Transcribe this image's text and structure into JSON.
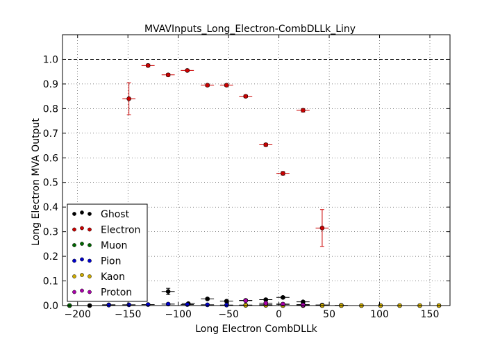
{
  "chart_data": {
    "type": "scatter",
    "title": "MVAVInputs_Long_Electron-CombDLLk_Liny",
    "xlabel": "Long Electron CombDLLk",
    "ylabel": "Long Electron MVA Output",
    "xlim": [
      -215,
      170
    ],
    "ylim": [
      0,
      1.1
    ],
    "xticks": [
      -200,
      -150,
      -100,
      -50,
      0,
      50,
      100,
      150
    ],
    "xtick_labels": [
      "−200",
      "−150",
      "−100",
      "−50",
      "0",
      "50",
      "100",
      "150"
    ],
    "yticks": [
      0.0,
      0.1,
      0.2,
      0.3,
      0.4,
      0.5,
      0.6,
      0.7,
      0.8,
      0.9,
      1.0
    ],
    "ytick_labels": [
      "0.0",
      "0.1",
      "0.2",
      "0.3",
      "0.4",
      "0.5",
      "0.6",
      "0.7",
      "0.8",
      "0.9",
      "1.0"
    ],
    "grid": true,
    "reference_line_y": 1.0,
    "legend_position": "lower-left",
    "series": [
      {
        "name": "Ghost",
        "color": "#000000",
        "points": [
          {
            "x": -110,
            "y": 0.057,
            "xerr": 6.5,
            "yerr": 0.013
          },
          {
            "x": -90,
            "y": 0.008,
            "xerr": 6.5,
            "yerr": 0.002
          },
          {
            "x": -71,
            "y": 0.027,
            "xerr": 6.5,
            "yerr": 0.004
          },
          {
            "x": -52,
            "y": 0.018,
            "xerr": 6.5,
            "yerr": 0.003
          },
          {
            "x": -33,
            "y": 0.021,
            "xerr": 6.5,
            "yerr": 0.004
          },
          {
            "x": -13,
            "y": 0.024,
            "xerr": 6.5,
            "yerr": 0.004
          },
          {
            "x": 4,
            "y": 0.033,
            "xerr": 6.5,
            "yerr": 0.005
          },
          {
            "x": 24,
            "y": 0.015,
            "xerr": 6.5,
            "yerr": 0.003
          },
          {
            "x": 43,
            "y": 0.002,
            "xerr": 6.5,
            "yerr": 0.001
          },
          {
            "x": 62,
            "y": 0.001,
            "xerr": 6.5,
            "yerr": 0.001
          },
          {
            "x": -188,
            "y": 0.0,
            "xerr": 6.5,
            "yerr": 0.0
          },
          {
            "x": -169,
            "y": 0.003,
            "xerr": 6.5,
            "yerr": 0.001
          }
        ]
      },
      {
        "name": "Electron",
        "color": "#cc0000",
        "points": [
          {
            "x": -149,
            "y": 0.84,
            "xerr": 6.5,
            "yerr": 0.065
          },
          {
            "x": -130,
            "y": 0.975,
            "xerr": 6.5,
            "yerr": 0.006
          },
          {
            "x": -110,
            "y": 0.937,
            "xerr": 6.5,
            "yerr": 0.006
          },
          {
            "x": -91,
            "y": 0.955,
            "xerr": 6.5,
            "yerr": 0.005
          },
          {
            "x": -71,
            "y": 0.895,
            "xerr": 6.5,
            "yerr": 0.005
          },
          {
            "x": -52,
            "y": 0.895,
            "xerr": 6.5,
            "yerr": 0.005
          },
          {
            "x": -33,
            "y": 0.85,
            "xerr": 6.5,
            "yerr": 0.005
          },
          {
            "x": -13,
            "y": 0.653,
            "xerr": 6.5,
            "yerr": 0.006
          },
          {
            "x": 4,
            "y": 0.537,
            "xerr": 6.5,
            "yerr": 0.007
          },
          {
            "x": 24,
            "y": 0.793,
            "xerr": 6.5,
            "yerr": 0.007
          },
          {
            "x": 43,
            "y": 0.315,
            "xerr": 6.5,
            "yerr": 0.075
          }
        ]
      },
      {
        "name": "Muon",
        "color": "#006600",
        "points": [
          {
            "x": -208,
            "y": 0.0,
            "xerr": 6.5,
            "yerr": 0.0
          }
        ]
      },
      {
        "name": "Pion",
        "color": "#0000cc",
        "points": [
          {
            "x": -169,
            "y": 0.002,
            "xerr": 6.5,
            "yerr": 0.001
          },
          {
            "x": -149,
            "y": 0.003,
            "xerr": 6.5,
            "yerr": 0.001
          },
          {
            "x": -130,
            "y": 0.004,
            "xerr": 6.5,
            "yerr": 0.001
          },
          {
            "x": -110,
            "y": 0.006,
            "xerr": 6.5,
            "yerr": 0.001
          },
          {
            "x": -91,
            "y": 0.004,
            "xerr": 6.5,
            "yerr": 0.001
          },
          {
            "x": -71,
            "y": 0.003,
            "xerr": 6.5,
            "yerr": 0.001
          },
          {
            "x": -52,
            "y": 0.002,
            "xerr": 6.5,
            "yerr": 0.001
          },
          {
            "x": -33,
            "y": 0.002,
            "xerr": 6.5,
            "yerr": 0.001
          },
          {
            "x": -13,
            "y": 0.003,
            "xerr": 6.5,
            "yerr": 0.001
          },
          {
            "x": 4,
            "y": 0.005,
            "xerr": 6.5,
            "yerr": 0.001
          },
          {
            "x": 24,
            "y": 0.004,
            "xerr": 6.5,
            "yerr": 0.001
          },
          {
            "x": 43,
            "y": 0.002,
            "xerr": 6.5,
            "yerr": 0.001
          }
        ]
      },
      {
        "name": "Kaon",
        "color": "#ccaa00",
        "points": [
          {
            "x": -33,
            "y": 0.001,
            "xerr": 6.5,
            "yerr": 0.001
          },
          {
            "x": -13,
            "y": 0.001,
            "xerr": 6.5,
            "yerr": 0.001
          },
          {
            "x": 4,
            "y": 0.0,
            "xerr": 6.5,
            "yerr": 0.0
          },
          {
            "x": 24,
            "y": 0.0,
            "xerr": 6.5,
            "yerr": 0.0
          },
          {
            "x": 43,
            "y": 0.0,
            "xerr": 6.5,
            "yerr": 0.0
          },
          {
            "x": 62,
            "y": 0.0,
            "xerr": 6.5,
            "yerr": 0.0
          },
          {
            "x": 82,
            "y": 0.0,
            "xerr": 6.5,
            "yerr": 0.0
          },
          {
            "x": 101,
            "y": 0.0,
            "xerr": 6.5,
            "yerr": 0.0
          },
          {
            "x": 120,
            "y": 0.0,
            "xerr": 6.5,
            "yerr": 0.0
          },
          {
            "x": 140,
            "y": 0.0,
            "xerr": 6.5,
            "yerr": 0.0
          },
          {
            "x": 159,
            "y": 0.0,
            "xerr": 6.5,
            "yerr": 0.0
          }
        ]
      },
      {
        "name": "Proton",
        "color": "#aa00aa",
        "points": [
          {
            "x": -33,
            "y": 0.02,
            "xerr": 6.5,
            "yerr": 0.003
          },
          {
            "x": -13,
            "y": 0.01,
            "xerr": 6.5,
            "yerr": 0.002
          },
          {
            "x": 4,
            "y": 0.006,
            "xerr": 6.5,
            "yerr": 0.001
          },
          {
            "x": 24,
            "y": 0.002,
            "xerr": 6.5,
            "yerr": 0.001
          }
        ]
      }
    ]
  }
}
